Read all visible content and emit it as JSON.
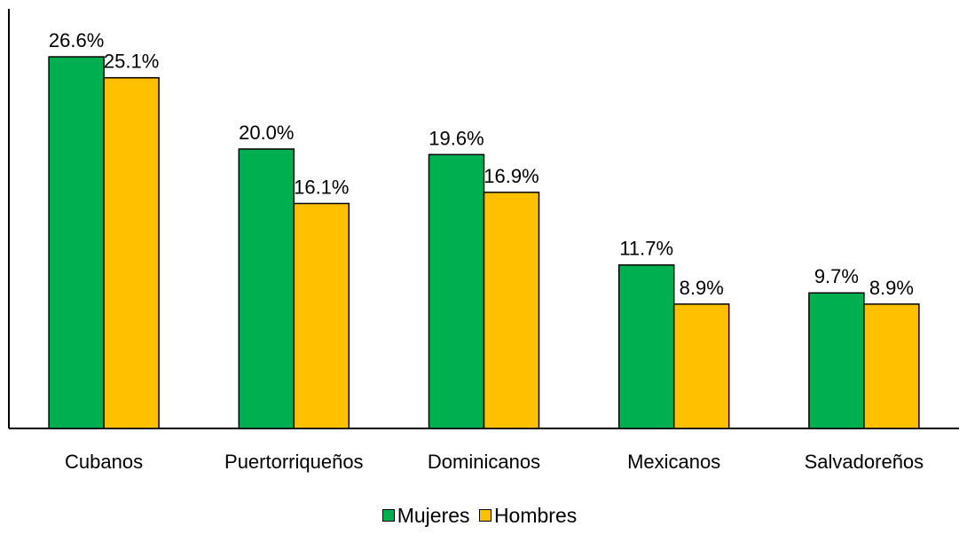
{
  "chart_data": {
    "type": "bar",
    "categories": [
      "Cubanos",
      "Puertorriqueños",
      "Dominicanos",
      "Mexicanos",
      "Salvadoreños"
    ],
    "series": [
      {
        "name": "Mujeres",
        "values": [
          26.6,
          20.0,
          19.6,
          11.7,
          9.7
        ],
        "labels": [
          "26.6%",
          "20.0%",
          "19.6%",
          "11.7%",
          "9.7%"
        ],
        "color": "#00B050"
      },
      {
        "name": "Hombres",
        "values": [
          25.1,
          16.1,
          16.9,
          8.9,
          8.9
        ],
        "labels": [
          "25.1%",
          "16.1%",
          "16.9%",
          "8.9%",
          "8.9%"
        ],
        "color": "#FFC000"
      }
    ],
    "ylim": [
      0,
      28
    ],
    "grid": false,
    "legend_position": "bottom"
  }
}
